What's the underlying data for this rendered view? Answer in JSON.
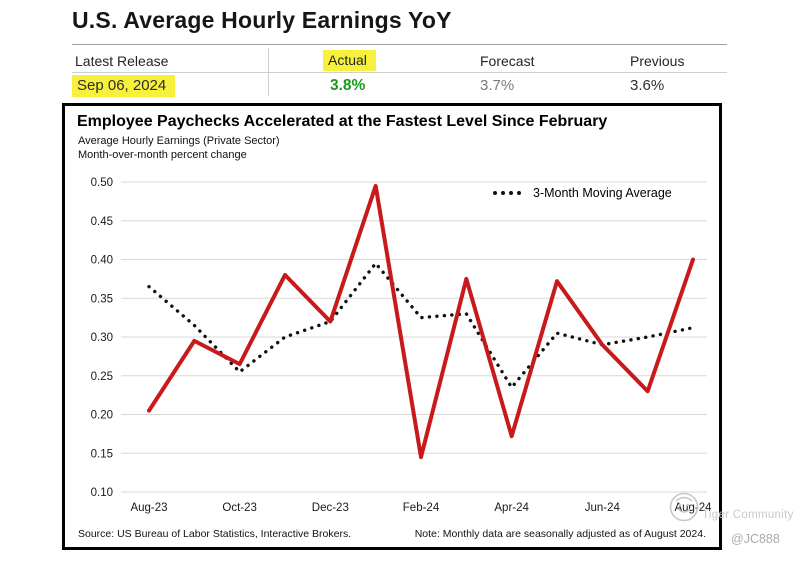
{
  "page": {
    "title": "U.S. Average Hourly Earnings YoY"
  },
  "release": {
    "columns": [
      {
        "header": "Latest Release",
        "value": "Sep 06, 2024"
      },
      {
        "header": "Actual",
        "value": "3.8%"
      },
      {
        "header": "Forecast",
        "value": "3.7%"
      },
      {
        "header": "Previous",
        "value": "3.6%"
      }
    ],
    "highlight_color": "#f8f13c",
    "actual_color": "#179a1b",
    "forecast_color": "#7a7a7a",
    "previous_color": "#2e2e2e"
  },
  "chart_data": {
    "type": "line",
    "title": "Employee Paychecks Accelerated at the Fastest Level Since February",
    "subtitle1": "Average Hourly Earnings (Private Sector)",
    "subtitle2": "Month-over-month percent change",
    "x": [
      "Aug-23",
      "Sep-23",
      "Oct-23",
      "Nov-23",
      "Dec-23",
      "Jan-24",
      "Feb-24",
      "Mar-24",
      "Apr-24",
      "May-24",
      "Jun-24",
      "Jul-24",
      "Aug-24"
    ],
    "x_tick_labels": [
      "Aug-23",
      "Oct-23",
      "Dec-23",
      "Feb-24",
      "Apr-24",
      "Jun-24",
      "Aug-24"
    ],
    "series": [
      {
        "name": "Average Hourly Earnings MoM % change",
        "color": "#c8191d",
        "style": "solid",
        "values": [
          0.205,
          0.295,
          0.265,
          0.38,
          0.32,
          0.495,
          0.145,
          0.375,
          0.172,
          0.372,
          0.29,
          0.23,
          0.4
        ]
      },
      {
        "name": "3-Month Moving Average",
        "color": "#111111",
        "style": "dotted",
        "values": [
          0.365,
          0.315,
          0.255,
          0.3,
          0.32,
          0.395,
          0.325,
          0.33,
          0.235,
          0.305,
          0.29,
          0.3,
          0.312
        ]
      }
    ],
    "ylim": [
      0.1,
      0.5
    ],
    "y_ticks": [
      0.5,
      0.45,
      0.4,
      0.35,
      0.3,
      0.25,
      0.2,
      0.15,
      0.1
    ],
    "grid": "horizontal",
    "grid_color": "#d8d8d8",
    "legend": {
      "label": "3-Month Moving Average",
      "position": "top-right"
    },
    "footer_left": "Source: US Bureau of Labor Statistics, Interactive Brokers.",
    "footer_right": "Note: Monthly data are seasonally adjusted as of August 2024."
  },
  "watermark": {
    "brand": "Tiger Community",
    "handle": "@JC888"
  }
}
